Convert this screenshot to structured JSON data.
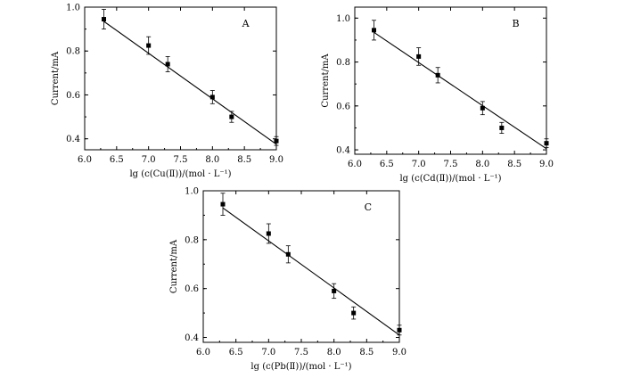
{
  "chart_data": [
    {
      "type": "scatter",
      "panel_label": "A",
      "xlabel": "lg (c(Cu(Ⅱ))/(mol · L⁻¹)",
      "ylabel": "Current/mA",
      "xlim": [
        6.0,
        9.0
      ],
      "ylim": [
        0.35,
        1.0
      ],
      "xticks": [
        "6.0",
        "6.5",
        "7.0",
        "7.5",
        "8.0",
        "8.5",
        "9.0"
      ],
      "yticks": [
        "0.4",
        "0.6",
        "0.8",
        "1.0"
      ],
      "x": [
        6.3,
        7.0,
        7.3,
        8.0,
        8.3,
        9.0
      ],
      "y": [
        0.945,
        0.825,
        0.74,
        0.59,
        0.5,
        0.39
      ],
      "yerr": [
        0.045,
        0.04,
        0.035,
        0.03,
        0.025,
        0.02
      ],
      "fit_line": [
        [
          6.3,
          0.935
        ],
        [
          9.0,
          0.375
        ]
      ]
    },
    {
      "type": "scatter",
      "panel_label": "B",
      "xlabel": "lg (c(Cd(Ⅱ))/(mol · L⁻¹)",
      "ylabel": "Current/mA",
      "xlim": [
        6.0,
        9.0
      ],
      "ylim": [
        0.38,
        1.05
      ],
      "xticks": [
        "6.0",
        "6.5",
        "7.0",
        "7.5",
        "8.0",
        "8.5",
        "9.0"
      ],
      "yticks": [
        "0.4",
        "0.6",
        "0.8",
        "1.0"
      ],
      "x": [
        6.3,
        7.0,
        7.3,
        8.0,
        8.3,
        9.0
      ],
      "y": [
        0.945,
        0.825,
        0.74,
        0.59,
        0.5,
        0.43
      ],
      "yerr": [
        0.045,
        0.04,
        0.035,
        0.03,
        0.025,
        0.02
      ],
      "fit_line": [
        [
          6.3,
          0.935
        ],
        [
          9.0,
          0.405
        ]
      ]
    },
    {
      "type": "scatter",
      "panel_label": "C",
      "xlabel": "lg (c(Pb(Ⅱ))/(mol · L⁻¹)",
      "ylabel": "Current/mA",
      "xlim": [
        6.0,
        9.0
      ],
      "ylim": [
        0.38,
        1.0
      ],
      "xticks": [
        "6.0",
        "6.5",
        "7.0",
        "7.5",
        "8.0",
        "8.5",
        "9.0"
      ],
      "yticks": [
        "0.4",
        "0.6",
        "0.8",
        "1.0"
      ],
      "x": [
        6.3,
        7.0,
        7.3,
        8.0,
        8.3,
        9.0
      ],
      "y": [
        0.945,
        0.825,
        0.74,
        0.59,
        0.5,
        0.43
      ],
      "yerr": [
        0.045,
        0.04,
        0.035,
        0.03,
        0.025,
        0.02
      ],
      "fit_line": [
        [
          6.3,
          0.93
        ],
        [
          9.0,
          0.41
        ]
      ]
    }
  ]
}
